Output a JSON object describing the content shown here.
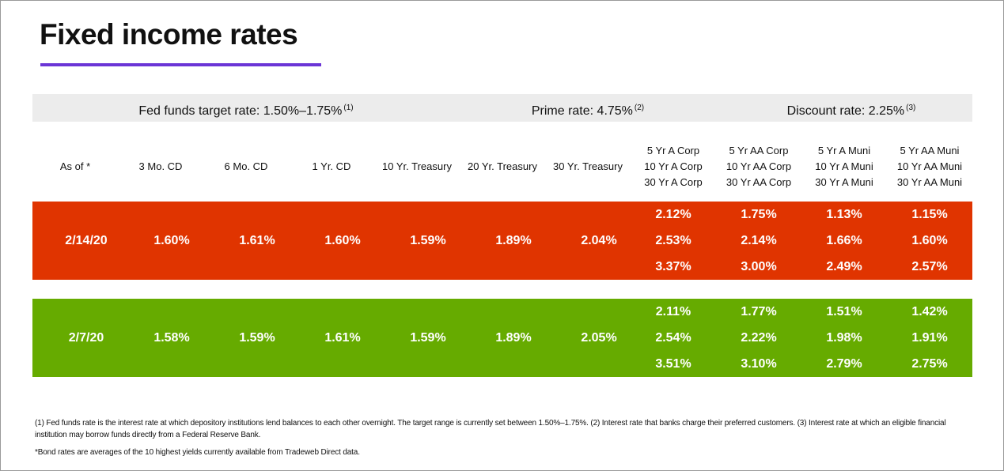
{
  "title": "Fixed income rates",
  "rates": [
    {
      "text": "Fed funds target rate: 1.50%–1.75%",
      "note": "(1)"
    },
    {
      "text": "Prime rate: 4.75%",
      "note": "(2)"
    },
    {
      "text": "Discount rate: 2.25%",
      "note": "(3)"
    }
  ],
  "columns": [
    [
      "As of *"
    ],
    [
      "3 Mo. CD"
    ],
    [
      "6 Mo. CD"
    ],
    [
      "1 Yr. CD"
    ],
    [
      "10 Yr. Treasury"
    ],
    [
      "20 Yr. Treasury"
    ],
    [
      "30 Yr. Treasury"
    ],
    [
      "5 Yr A Corp",
      "10 Yr A Corp",
      "30 Yr A Corp"
    ],
    [
      "5 Yr AA Corp",
      "10 Yr AA Corp",
      "30 Yr AA Corp"
    ],
    [
      "5 Yr A Muni",
      "10 Yr A Muni",
      "30 Yr A Muni"
    ],
    [
      "5 Yr AA Muni",
      "10 Yr AA Muni",
      "30 Yr AA Muni"
    ]
  ],
  "rows": [
    {
      "color": "#e03400",
      "cells": [
        [
          "2/14/20"
        ],
        [
          "1.60%"
        ],
        [
          "1.61%"
        ],
        [
          "1.60%"
        ],
        [
          "1.59%"
        ],
        [
          "1.89%"
        ],
        [
          "2.04%"
        ],
        [
          "2.12%",
          "2.53%",
          "3.37%"
        ],
        [
          "1.75%",
          "2.14%",
          "3.00%"
        ],
        [
          "1.13%",
          "1.66%",
          "2.49%"
        ],
        [
          "1.15%",
          "1.60%",
          "2.57%"
        ]
      ]
    },
    {
      "color": "#66ab00",
      "cells": [
        [
          "2/7/20"
        ],
        [
          "1.58%"
        ],
        [
          "1.59%"
        ],
        [
          "1.61%"
        ],
        [
          "1.59%"
        ],
        [
          "1.89%"
        ],
        [
          "2.05%"
        ],
        [
          "2.11%",
          "2.54%",
          "3.51%"
        ],
        [
          "1.77%",
          "2.22%",
          "3.10%"
        ],
        [
          "1.51%",
          "1.98%",
          "2.79%"
        ],
        [
          "1.42%",
          "1.91%",
          "2.75%"
        ]
      ]
    }
  ],
  "footnotes": [
    "(1) Fed funds rate is the interest rate at which depository institutions lend balances to each other overnight. The target range is currently set between 1.50%–1.75%. (2) Interest rate that banks charge their preferred customers. (3) Interest rate at which an eligible financial institution may borrow funds directly from a Federal Reserve Bank.",
    "*Bond rates are averages of the 10 highest yields currently available from Tradeweb Direct data."
  ]
}
